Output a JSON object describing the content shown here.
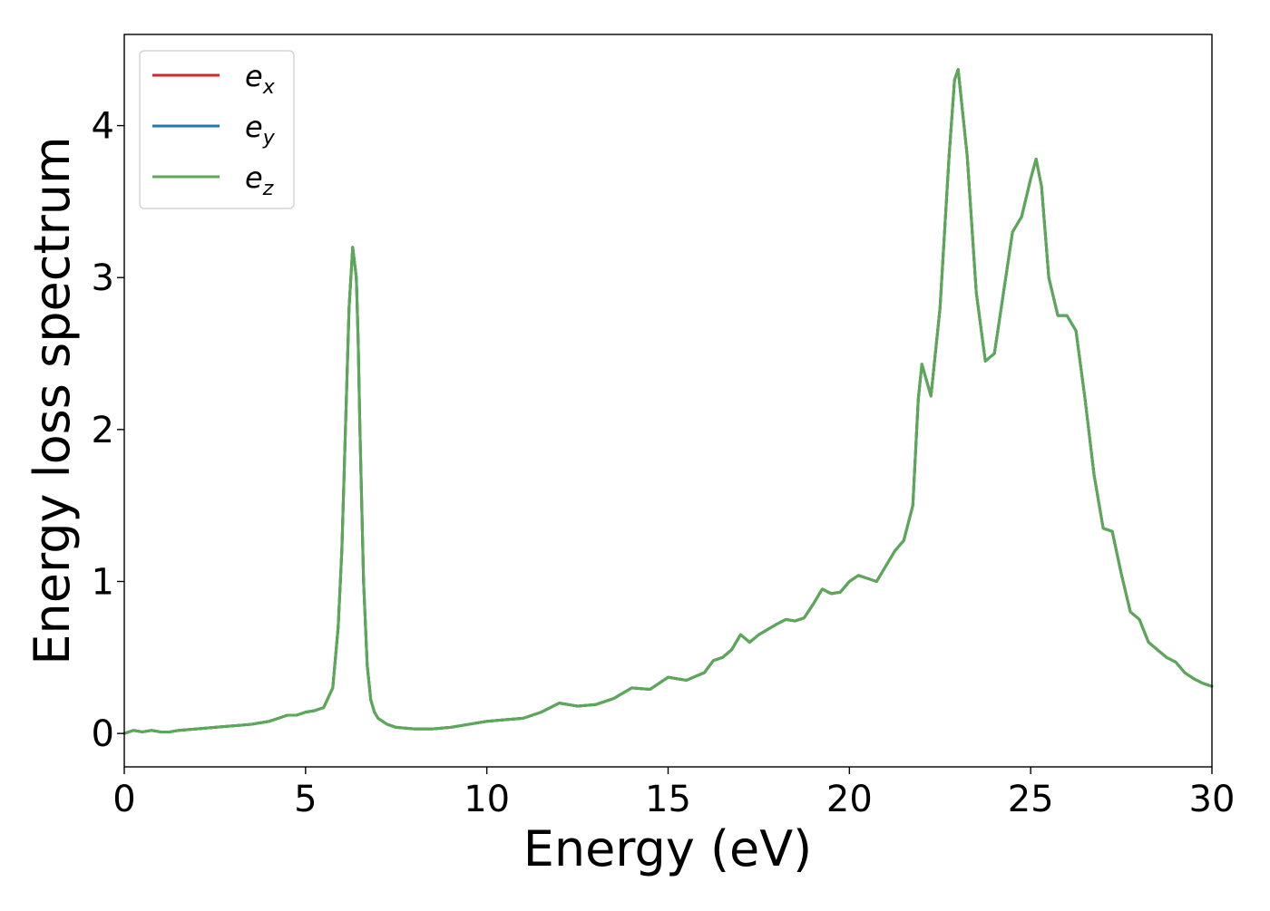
{
  "chart_data": {
    "type": "line",
    "title": "",
    "xlabel": "Energy (eV)",
    "ylabel": "Energy loss spectrum",
    "xlim": [
      0,
      30
    ],
    "ylim": [
      -0.22,
      4.6
    ],
    "xticks": [
      0,
      5,
      10,
      15,
      20,
      25,
      30
    ],
    "yticks": [
      0,
      1,
      2,
      3,
      4
    ],
    "xtick_labels": [
      "0",
      "5",
      "10",
      "15",
      "20",
      "25",
      "30"
    ],
    "ytick_labels": [
      "0",
      "1",
      "2",
      "3",
      "4"
    ],
    "grid": false,
    "legend_position": "top-left",
    "series": [
      {
        "name": "e_x",
        "color": "#d62728"
      },
      {
        "name": "e_y",
        "color": "#1f77b4"
      },
      {
        "name": "e_z",
        "color": "#5aaa55"
      }
    ],
    "legend": [
      {
        "base": "e",
        "sub": "x",
        "color": "#d62728"
      },
      {
        "base": "e",
        "sub": "y",
        "color": "#1f77b4"
      },
      {
        "base": "e",
        "sub": "z",
        "color": "#5aaa55"
      }
    ],
    "note": "All three series overlap; shared x/y data below.",
    "x": [
      0,
      0.25,
      0.5,
      0.75,
      1.0,
      1.25,
      1.5,
      2.0,
      2.5,
      3.0,
      3.5,
      4.0,
      4.25,
      4.5,
      4.75,
      5.0,
      5.25,
      5.5,
      5.75,
      5.9,
      6.0,
      6.1,
      6.2,
      6.3,
      6.4,
      6.45,
      6.5,
      6.6,
      6.7,
      6.8,
      6.9,
      7.0,
      7.25,
      7.5,
      8.0,
      8.5,
      9.0,
      9.5,
      10.0,
      10.5,
      11.0,
      11.5,
      11.75,
      12.0,
      12.5,
      13.0,
      13.5,
      14.0,
      14.5,
      15.0,
      15.5,
      16.0,
      16.25,
      16.5,
      16.75,
      17.0,
      17.25,
      17.5,
      18.0,
      18.25,
      18.5,
      18.75,
      19.0,
      19.25,
      19.5,
      19.75,
      20.0,
      20.25,
      20.5,
      20.75,
      21.0,
      21.25,
      21.5,
      21.75,
      21.9,
      22.0,
      22.25,
      22.5,
      22.75,
      22.9,
      23.0,
      23.25,
      23.5,
      23.75,
      24.0,
      24.25,
      24.5,
      24.75,
      25.0,
      25.15,
      25.3,
      25.5,
      25.75,
      26.0,
      26.25,
      26.5,
      26.75,
      27.0,
      27.25,
      27.5,
      27.75,
      28.0,
      28.25,
      28.5,
      28.75,
      29.0,
      29.25,
      29.5,
      29.75,
      30.0
    ],
    "y": [
      0.0,
      0.02,
      0.01,
      0.02,
      0.01,
      0.01,
      0.02,
      0.03,
      0.04,
      0.05,
      0.06,
      0.08,
      0.1,
      0.12,
      0.12,
      0.14,
      0.15,
      0.17,
      0.3,
      0.7,
      1.2,
      2.0,
      2.8,
      3.2,
      3.0,
      2.6,
      2.0,
      1.0,
      0.45,
      0.22,
      0.14,
      0.1,
      0.06,
      0.04,
      0.03,
      0.03,
      0.04,
      0.06,
      0.08,
      0.09,
      0.1,
      0.14,
      0.17,
      0.2,
      0.18,
      0.19,
      0.23,
      0.3,
      0.29,
      0.37,
      0.35,
      0.4,
      0.48,
      0.5,
      0.55,
      0.65,
      0.6,
      0.65,
      0.72,
      0.75,
      0.74,
      0.76,
      0.85,
      0.95,
      0.92,
      0.93,
      1.0,
      1.04,
      1.02,
      1.0,
      1.1,
      1.2,
      1.27,
      1.5,
      2.2,
      2.43,
      2.22,
      2.8,
      3.8,
      4.3,
      4.37,
      3.8,
      2.9,
      2.45,
      2.5,
      2.9,
      3.3,
      3.4,
      3.65,
      3.78,
      3.6,
      3.0,
      2.75,
      2.75,
      2.65,
      2.2,
      1.7,
      1.35,
      1.33,
      1.05,
      0.8,
      0.75,
      0.6,
      0.55,
      0.5,
      0.47,
      0.4,
      0.36,
      0.33,
      0.31
    ]
  }
}
